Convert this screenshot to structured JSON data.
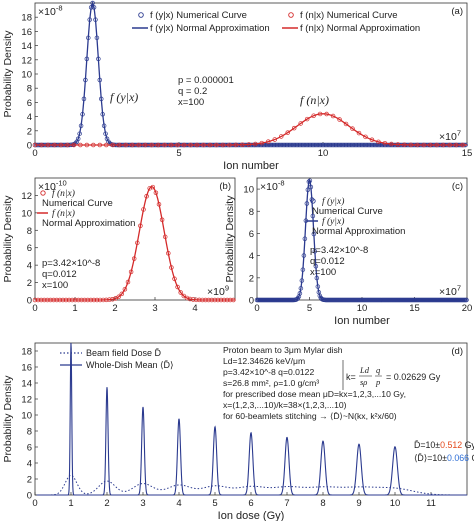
{
  "chart_data": [
    {
      "panel": "(a)",
      "type": "line",
      "xlabel": "Ion number",
      "ylabel": "Probability Density",
      "x_multiplier": "×10^7",
      "y_multiplier": "×10^-8",
      "xlim": [
        0,
        15
      ],
      "ylim": [
        0,
        20
      ],
      "xticks": [
        0,
        5,
        10,
        15
      ],
      "yticks": [
        0,
        2,
        4,
        6,
        8,
        10,
        12,
        14,
        16,
        18
      ],
      "params": [
        "p = 0.000001",
        "q = 0.2",
        "x=100"
      ],
      "curve_labels": [
        "f (y|x)",
        "f (n|x)"
      ],
      "legend": [
        {
          "label": "f (y|x) Numerical Curve",
          "marker": "circle",
          "color": "#2b3a8f"
        },
        {
          "label": "f (n|x) Numerical Curve",
          "marker": "circle",
          "color": "#d42a2a"
        },
        {
          "label": "f (y|x) Normal Approximation",
          "marker": "line",
          "color": "#2b3a8f"
        },
        {
          "label": "f (n|x) Normal Approximation",
          "marker": "line",
          "color": "#d42a2a"
        }
      ],
      "series": [
        {
          "name": "f(y|x)",
          "color": "#2b3a8f",
          "gaussian": {
            "mu": 2.0,
            "sigma": 0.2,
            "peak": 20.0
          }
        },
        {
          "name": "f(n|x)",
          "color": "#d42a2a",
          "gaussian": {
            "mu": 10.0,
            "sigma": 0.9,
            "peak": 4.4
          }
        }
      ]
    },
    {
      "panel": "(b)",
      "type": "line",
      "xlabel": "",
      "ylabel": "Probability Density",
      "x_multiplier": "×10^9",
      "y_multiplier": "×10^-10",
      "xlim": [
        0,
        5
      ],
      "ylim": [
        0,
        14
      ],
      "xticks": [
        0,
        1,
        2,
        3,
        4
      ],
      "yticks": [
        0,
        2,
        4,
        6,
        8,
        10,
        12
      ],
      "params": [
        "p=3.42×10^-8",
        "q=0.012",
        "x=100"
      ],
      "legend": [
        {
          "label": "f (n|x)",
          "sub": "Numerical Curve",
          "marker": "circle",
          "color": "#d42a2a"
        },
        {
          "label": "f (n|x)",
          "sub": "Normal Approximation",
          "marker": "line",
          "color": "#d42a2a"
        }
      ],
      "series": [
        {
          "name": "f(n|x)",
          "color": "#d42a2a",
          "gaussian": {
            "mu": 2.92,
            "sigma": 0.31,
            "peak": 13.0
          }
        }
      ]
    },
    {
      "panel": "(c)",
      "type": "line",
      "xlabel": "Ion number",
      "ylabel": "Probability Density",
      "x_multiplier": "×10^7",
      "y_multiplier": "×10^-8",
      "xlim": [
        0,
        20
      ],
      "ylim": [
        0,
        11
      ],
      "xticks": [
        0,
        5,
        10,
        15,
        20
      ],
      "yticks": [
        0,
        2,
        4,
        6,
        8,
        10
      ],
      "params": [
        "p=3.42×10^-8",
        "q=0.012",
        "x=100"
      ],
      "legend": [
        {
          "label": "f (y|x)",
          "sub": "Numerical Curve",
          "marker": "circle",
          "color": "#2b3a8f"
        },
        {
          "label": "f (y|x)",
          "sub": "Normal Approximation",
          "marker": "line",
          "color": "#2b3a8f"
        }
      ],
      "series": [
        {
          "name": "f(y|x)",
          "color": "#2b3a8f",
          "gaussian": {
            "mu": 5.0,
            "sigma": 0.38,
            "peak": 10.8
          }
        }
      ]
    },
    {
      "panel": "(d)",
      "type": "line",
      "xlabel": "Ion dose (Gy)",
      "ylabel": "Probability Density",
      "xlim": [
        0,
        12
      ],
      "ylim": [
        0,
        19
      ],
      "xticks": [
        0,
        1,
        2,
        3,
        4,
        5,
        6,
        7,
        8,
        9,
        10,
        11
      ],
      "yticks": [
        0,
        2,
        4,
        6,
        8,
        10,
        12,
        14,
        16,
        18
      ],
      "legend": [
        {
          "label": "Beam field Dose  D̄",
          "style": "dotted",
          "color": "#2b3a8f"
        },
        {
          "label": "Whole-Dish Mean ⟨D̄⟩",
          "style": "solid",
          "color": "#2b3a8f"
        }
      ],
      "annotation_lines": [
        "Proton beam to 3μm Mylar dish",
        "Ld=12.34626 keV/μm",
        "p=3.42×10^-8 q=0.0122",
        "s=26.8 mm², ρ=1.0 g/cm³",
        "for prescribed dose mean μD=kx=1,2,3,...10 Gy,",
        "x=(1,2,3,...10)/k=38×(1,2,3,...10)",
        "for 60-beamlets stitching → ⟨D̄⟩~N(kx, k²x/60)"
      ],
      "k_formula": {
        "lhs": "k=",
        "num": "Ld",
        "den": "sρ",
        "num2": "q",
        "den2": "p",
        "value": "= 0.02629 Gy"
      },
      "result_lines": [
        {
          "sym": "D̄",
          "prefix": "=10±",
          "value": "0.512",
          "unit": "Gy",
          "value_color": "#e4491c"
        },
        {
          "sym": "⟨D̄⟩",
          "prefix": "=10±",
          "value": "0.066",
          "unit": "Gy",
          "value_color": "#2f6fd6"
        }
      ],
      "series": [
        {
          "name": "Beam field Dose",
          "style": "dotted",
          "k": 0.02629,
          "count_factor": 38
        },
        {
          "name": "Whole-Dish Mean",
          "style": "solid",
          "k": 0.02629,
          "count_factor": 38,
          "beamlets": 60
        }
      ]
    }
  ]
}
